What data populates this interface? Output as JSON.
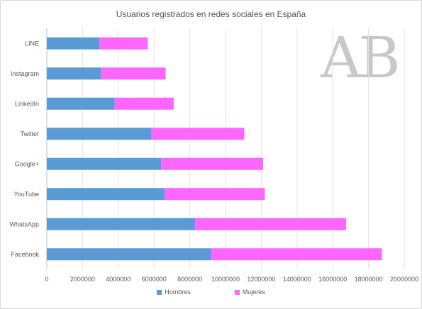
{
  "chart_data": {
    "type": "bar",
    "orientation": "horizontal",
    "stacked": true,
    "title": "Usuarios registrados en redes sociales en España",
    "categories": [
      "LINE",
      "Instagram",
      "LinkedIn",
      "Twitter",
      "Google+",
      "YouTube",
      "WhatsApp",
      "Facebook"
    ],
    "series": [
      {
        "name": "Hombres",
        "color": "#5b9bd5",
        "values": [
          2950000,
          3050000,
          3800000,
          5850000,
          6400000,
          6600000,
          8300000,
          9200000
        ]
      },
      {
        "name": "Mujeres",
        "color": "#ff66ff",
        "values": [
          2700000,
          3600000,
          3300000,
          5200000,
          5700000,
          5600000,
          8450000,
          9550000
        ]
      }
    ],
    "xlim": [
      0,
      20000000
    ],
    "xticks": [
      "0",
      "2000000",
      "4000000",
      "6000000",
      "8000000",
      "10000000",
      "12000000",
      "14000000",
      "16000000",
      "18000000",
      "20000000"
    ],
    "grid": true,
    "legend_position": "bottom"
  },
  "watermark": "AB"
}
